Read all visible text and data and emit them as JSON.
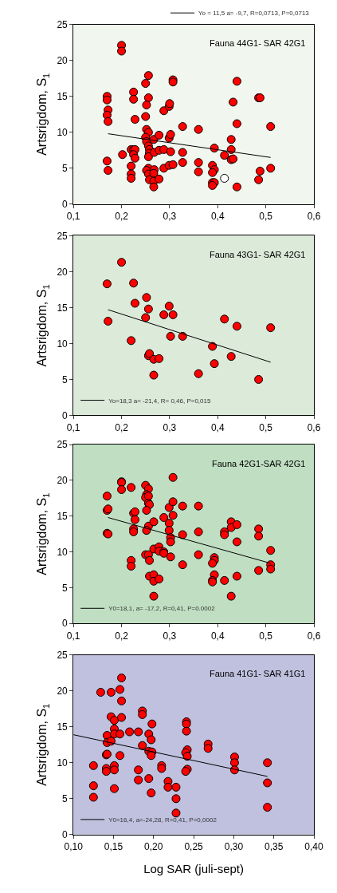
{
  "chart_data": [
    {
      "type": "scatter",
      "ylabel": "Artsrigdom, S$_{1}$",
      "annotations": [
        "Fauna 44G1- SAR 42G1"
      ],
      "xlim": [
        0.1,
        0.6
      ],
      "xticks": [
        {
          "value": 0.1,
          "label": "0,1"
        },
        {
          "value": 0.2,
          "label": "0,2"
        },
        {
          "value": 0.3,
          "label": "0,3"
        },
        {
          "value": 0.4,
          "label": "0,4"
        },
        {
          "value": 0.5,
          "label": "0,5"
        },
        {
          "value": 0.6,
          "label": "0,6"
        }
      ],
      "ylim": [
        0,
        25
      ],
      "yticks": [
        0,
        5,
        10,
        15,
        20,
        25
      ],
      "marker": "circle",
      "grid": false,
      "legend": "top right",
      "series": [
        {
          "color": "#ff0000",
          "x": [
            0.2,
            0.2,
            0.17,
            0.17,
            0.172,
            0.17,
            0.172,
            0.17,
            0.172,
            0.202,
            0.225,
            0.225,
            0.228,
            0.22,
            0.225,
            0.228,
            0.225,
            0.228,
            0.22,
            0.22,
            0.22,
            0.256,
            0.25,
            0.256,
            0.252,
            0.25,
            0.252,
            0.256,
            0.25,
            0.252,
            0.256,
            0.258,
            0.258,
            0.256,
            0.256,
            0.252,
            0.256,
            0.258,
            0.267,
            0.268,
            0.268,
            0.267,
            0.267,
            0.267,
            0.278,
            0.278,
            0.278,
            0.288,
            0.288,
            0.288,
            0.299,
            0.3,
            0.299,
            0.302,
            0.302,
            0.299,
            0.307,
            0.307,
            0.307,
            0.327,
            0.327,
            0.327,
            0.36,
            0.36,
            0.36,
            0.393,
            0.389,
            0.393,
            0.389,
            0.389,
            0.393,
            0.389,
            0.414,
            0.428,
            0.428,
            0.428,
            0.432,
            0.432,
            0.44,
            0.44,
            0.44,
            0.485,
            0.488,
            0.488,
            0.485,
            0.51,
            0.51
          ],
          "values": [
            22.1,
            21.3,
            15.0,
            14.5,
            13.1,
            12.4,
            11.5,
            6.0,
            4.7,
            6.9,
            15.6,
            14.6,
            11.8,
            7.6,
            7.6,
            7.6,
            6.9,
            6.4,
            5.3,
            4.2,
            3.6,
            17.9,
            16.8,
            14.8,
            13.8,
            12.2,
            10.4,
            10.0,
            9.3,
            8.7,
            8.1,
            7.6,
            7.1,
            6.6,
            5.0,
            4.7,
            4.2,
            3.4,
            9.0,
            7.2,
            4.8,
            4.3,
            3.2,
            2.4,
            9.6,
            7.5,
            3.5,
            13.0,
            7.6,
            5.0,
            13.6,
            14.0,
            9.2,
            9.7,
            7.3,
            5.4,
            5.5,
            17.3,
            17.0,
            10.8,
            7.2,
            5.8,
            10.4,
            5.8,
            4.5,
            7.8,
            5.4,
            4.8,
            4.4,
            3.0,
            3.0,
            2.6,
            6.8,
            9.0,
            7.6,
            6.2,
            6.3,
            14.2,
            17.1,
            11.2,
            2.4,
            14.8,
            14.8,
            4.6,
            3.4,
            10.8,
            5.0
          ]
        },
        {
          "color": "#ffffff",
          "x": [
            0.414
          ],
          "values": [
            3.6
          ]
        },
        {
          "type": "line",
          "marker": "none",
          "name": "Yo = 11,5 a= -9,7, R=0,0713, P=0,0713",
          "color": "#000000",
          "x": [
            0.172,
            0.51
          ],
          "values": [
            9.8,
            6.5
          ]
        }
      ]
    },
    {
      "type": "scatter",
      "ylabel": "Artsrigdom, S$_{1}$",
      "annotations": [
        "Fauna 43G1- SAR 42G1"
      ],
      "xlim": [
        0.1,
        0.6
      ],
      "xticks": [
        {
          "value": 0.1,
          "label": "0,1"
        },
        {
          "value": 0.2,
          "label": "0,2"
        },
        {
          "value": 0.3,
          "label": "0,3"
        },
        {
          "value": 0.4,
          "label": "0,4"
        },
        {
          "value": 0.5,
          "label": "0,5"
        },
        {
          "value": 0.6,
          "label": "0,6"
        }
      ],
      "ylim": [
        0,
        25
      ],
      "yticks": [
        0,
        5,
        10,
        15,
        20,
        25
      ],
      "marker": "circle",
      "grid": false,
      "legend": "bottom left",
      "series": [
        {
          "color": "#ff0000",
          "x": [
            0.2,
            0.17,
            0.225,
            0.172,
            0.228,
            0.252,
            0.256,
            0.25,
            0.22,
            0.256,
            0.258,
            0.267,
            0.278,
            0.267,
            0.288,
            0.299,
            0.307,
            0.302,
            0.327,
            0.36,
            0.389,
            0.393,
            0.414,
            0.428,
            0.44,
            0.485,
            0.51
          ],
          "values": [
            21.3,
            18.3,
            18.4,
            13.1,
            15.6,
            16.4,
            14.8,
            13.6,
            10.4,
            8.3,
            8.6,
            7.8,
            7.9,
            5.6,
            14.0,
            15.2,
            14.0,
            11.0,
            11.0,
            5.8,
            9.6,
            7.2,
            13.4,
            8.2,
            12.4,
            5.0,
            12.2
          ]
        },
        {
          "type": "line",
          "marker": "none",
          "name": "Yo=18,3 a= -21,4, R= 0,46, P=0,015",
          "color": "#000000",
          "x": [
            0.172,
            0.51
          ],
          "values": [
            14.7,
            7.4
          ]
        }
      ]
    },
    {
      "type": "scatter",
      "ylabel": "Artsrigdom, S$_{1}$",
      "annotations": [
        "Fauna 42G1-SAR 42G1"
      ],
      "xlim": [
        0.1,
        0.6
      ],
      "xticks": [
        {
          "value": 0.1,
          "label": "0,1"
        },
        {
          "value": 0.2,
          "label": "0,2"
        },
        {
          "value": 0.3,
          "label": "0,3"
        },
        {
          "value": 0.4,
          "label": "0,4"
        },
        {
          "value": 0.5,
          "label": "0,5"
        },
        {
          "value": 0.6,
          "label": "0,6"
        }
      ],
      "ylim": [
        0,
        25
      ],
      "yticks": [
        0,
        5,
        10,
        15,
        20,
        25
      ],
      "marker": "circle",
      "grid": false,
      "legend": "bottom left",
      "series": [
        {
          "color": "#ff0000",
          "x": [
            0.17,
            0.17,
            0.172,
            0.17,
            0.172,
            0.2,
            0.2,
            0.2,
            0.22,
            0.22,
            0.22,
            0.225,
            0.228,
            0.228,
            0.225,
            0.225,
            0.25,
            0.256,
            0.252,
            0.25,
            0.256,
            0.256,
            0.258,
            0.252,
            0.256,
            0.252,
            0.25,
            0.256,
            0.258,
            0.258,
            0.267,
            0.267,
            0.278,
            0.278,
            0.267,
            0.267,
            0.278,
            0.267,
            0.288,
            0.288,
            0.288,
            0.299,
            0.299,
            0.299,
            0.302,
            0.302,
            0.302,
            0.307,
            0.307,
            0.307,
            0.327,
            0.327,
            0.327,
            0.36,
            0.36,
            0.36,
            0.393,
            0.393,
            0.389,
            0.393,
            0.389,
            0.389,
            0.414,
            0.414,
            0.414,
            0.428,
            0.428,
            0.428,
            0.44,
            0.44,
            0.44,
            0.485,
            0.485,
            0.485,
            0.51,
            0.51,
            0.51
          ],
          "values": [
            17.8,
            15.8,
            16.0,
            12.6,
            12.5,
            19.8,
            19.7,
            18.7,
            19.0,
            8.8,
            8.0,
            15.4,
            15.6,
            14.5,
            13.2,
            12.8,
            19.3,
            18.8,
            18.0,
            17.6,
            17.8,
            16.8,
            16.6,
            15.8,
            13.6,
            13.0,
            9.6,
            9.6,
            8.8,
            6.6,
            14.2,
            10.4,
            10.7,
            10.1,
            6.8,
            5.9,
            6.2,
            3.8,
            14.8,
            10.0,
            9.8,
            16.2,
            14.0,
            13.0,
            12.0,
            11.4,
            9.3,
            20.4,
            17.0,
            15.1,
            16.4,
            12.4,
            8.2,
            16.4,
            12.8,
            9.6,
            9.2,
            8.8,
            8.4,
            6.8,
            6.0,
            5.8,
            12.8,
            12.4,
            6.0,
            14.2,
            13.4,
            3.8,
            13.8,
            11.4,
            6.6,
            13.2,
            12.2,
            7.4,
            10.2,
            8.2,
            7.6
          ]
        },
        {
          "type": "line",
          "marker": "none",
          "name": "Y0=18,1, a= -17,2, R=0,41, P=0.0002",
          "color": "#000000",
          "x": [
            0.172,
            0.51
          ],
          "values": [
            14.8,
            8.4
          ]
        }
      ]
    },
    {
      "type": "scatter",
      "ylabel": "Artsrigdom, S$_{1}$",
      "xlabel": "Log SAR (juli-sept)",
      "annotations": [
        "Fauna 41G1- SAR 41G1"
      ],
      "xlim": [
        0.1,
        0.4
      ],
      "xticks": [
        {
          "value": 0.1,
          "label": "0,10"
        },
        {
          "value": 0.15,
          "label": "0,15"
        },
        {
          "value": 0.2,
          "label": "0,20"
        },
        {
          "value": 0.25,
          "label": "0,25"
        },
        {
          "value": 0.3,
          "label": "0,30"
        },
        {
          "value": 0.35,
          "label": "0,35"
        },
        {
          "value": 0.4,
          "label": "0,40"
        }
      ],
      "ylim": [
        0,
        25
      ],
      "yticks": [
        0,
        5,
        10,
        15,
        20,
        25
      ],
      "marker": "circle",
      "grid": false,
      "legend": "bottom left",
      "series": [
        {
          "color": "#ff0000",
          "x": [
            0.125,
            0.125,
            0.125,
            0.134,
            0.147,
            0.142,
            0.142,
            0.147,
            0.147,
            0.151,
            0.151,
            0.151,
            0.141,
            0.142,
            0.141,
            0.141,
            0.151,
            0.151,
            0.151,
            0.16,
            0.158,
            0.16,
            0.16,
            0.158,
            0.158,
            0.17,
            0.181,
            0.181,
            0.181,
            0.186,
            0.186,
            0.186,
            0.194,
            0.197,
            0.198,
            0.194,
            0.198,
            0.197,
            0.194,
            0.197,
            0.21,
            0.21,
            0.218,
            0.218,
            0.228,
            0.228,
            0.228,
            0.241,
            0.241,
            0.241,
            0.242,
            0.24,
            0.242,
            0.242,
            0.24,
            0.268,
            0.268,
            0.301,
            0.301,
            0.301,
            0.342,
            0.342,
            0.342
          ],
          "values": [
            9.6,
            6.8,
            5.2,
            19.8,
            19.8,
            13.8,
            12.8,
            13.0,
            16.4,
            15.9,
            14.7,
            14.0,
            11.1,
            11.2,
            9.2,
            8.8,
            9.6,
            9.0,
            6.4,
            21.8,
            20.2,
            18.6,
            16.3,
            14.0,
            11.0,
            14.3,
            14.3,
            9.0,
            7.6,
            17.2,
            16.7,
            12.4,
            14.0,
            13.2,
            15.4,
            11.6,
            11.5,
            11.0,
            7.8,
            5.8,
            9.6,
            9.2,
            7.4,
            6.6,
            6.6,
            5.0,
            3.0,
            15.7,
            15.4,
            14.4,
            11.8,
            11.4,
            10.9,
            9.1,
            8.8,
            12.6,
            12.0,
            10.8,
            10.0,
            9.0,
            10.0,
            7.2,
            3.8
          ]
        },
        {
          "type": "line",
          "marker": "none",
          "name": "Y0=16,4, a=-24,28, R=0,41, P=0,0002",
          "color": "#000000",
          "x": [
            0.1,
            0.342
          ],
          "values": [
            13.9,
            8.1
          ]
        }
      ]
    }
  ]
}
